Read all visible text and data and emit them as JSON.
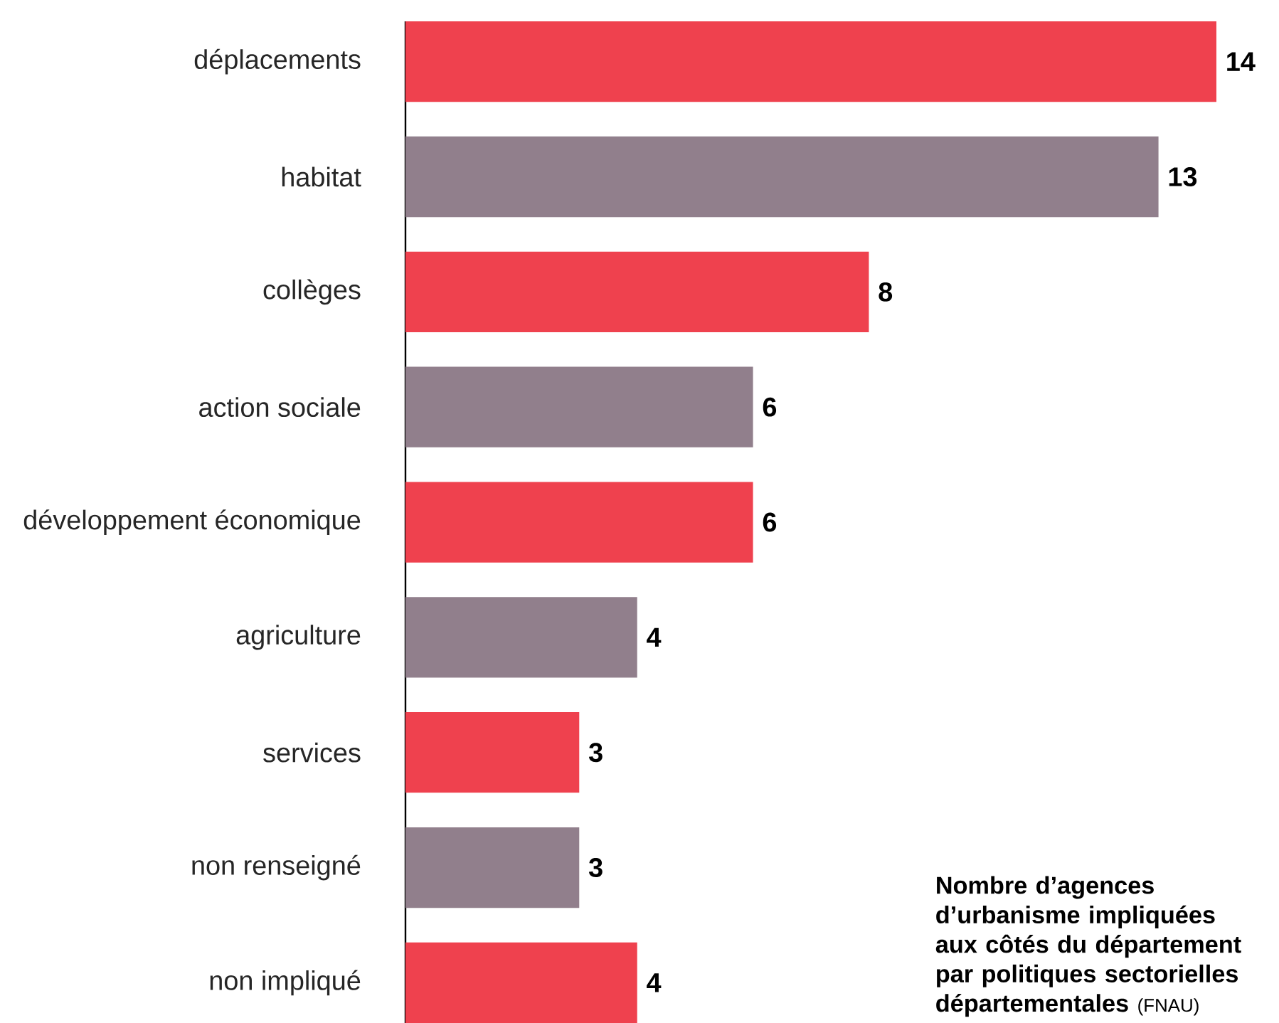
{
  "chart_data": {
    "type": "bar",
    "orientation": "horizontal",
    "title": "Nombre d’agences d’urbanisme impliquées aux côtés du département par politiques sectorielles départementales",
    "categories": [
      "déplacements",
      "habitat",
      "collèges",
      "action sociale",
      "développement économique",
      "agriculture",
      "services",
      "non renseigné",
      "non impliqué"
    ],
    "values": [
      14,
      13,
      8,
      6,
      6,
      4,
      3,
      3,
      4
    ],
    "colors": [
      "#ef414e",
      "#917f8c",
      "#ef414e",
      "#917f8c",
      "#ef414e",
      "#917f8c",
      "#ef414e",
      "#917f8c",
      "#ef414e"
    ],
    "data_labels": true,
    "annotations": [
      "(FNAU)"
    ]
  }
}
